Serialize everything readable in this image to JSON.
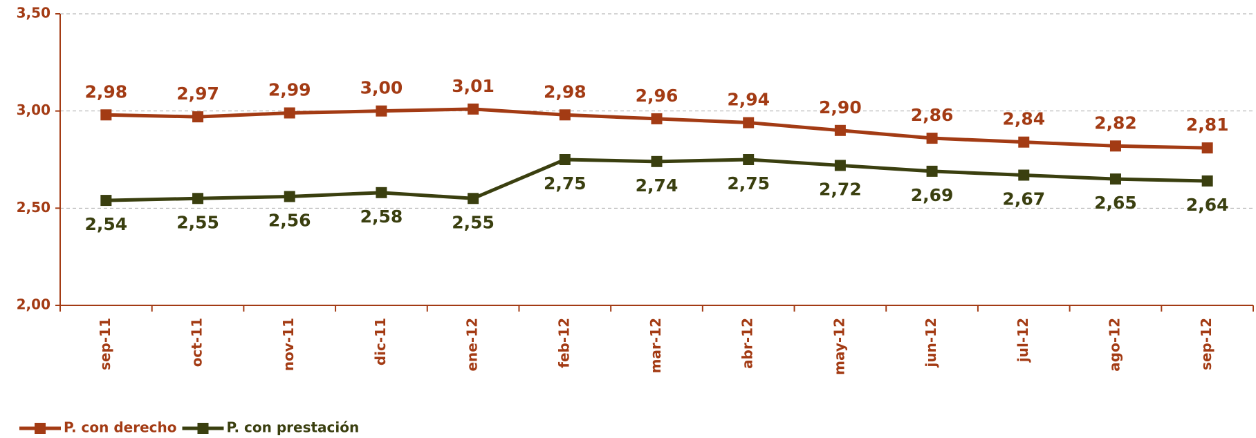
{
  "chart_data": {
    "type": "line",
    "categories": [
      "sep-11",
      "oct-11",
      "nov-11",
      "dic-11",
      "ene-12",
      "feb-12",
      "mar-12",
      "abr-12",
      "may-12",
      "jun-12",
      "jul-12",
      "ago-12",
      "sep-12"
    ],
    "series": [
      {
        "name": "P. con derecho",
        "color": "#a33b14",
        "values": [
          2.98,
          2.97,
          2.99,
          3.0,
          3.01,
          2.98,
          2.96,
          2.94,
          2.9,
          2.86,
          2.84,
          2.82,
          2.81
        ],
        "value_labels": [
          "2,98",
          "2,97",
          "2,99",
          "3,00",
          "3,01",
          "2,98",
          "2,96",
          "2,94",
          "2,90",
          "2,86",
          "2,84",
          "2,82",
          "2,81"
        ]
      },
      {
        "name": "P. con prestación",
        "color": "#3a3f0f",
        "values": [
          2.54,
          2.55,
          2.56,
          2.58,
          2.55,
          2.75,
          2.74,
          2.75,
          2.72,
          2.69,
          2.67,
          2.65,
          2.64
        ],
        "value_labels": [
          "2,54",
          "2,55",
          "2,56",
          "2,58",
          "2,55",
          "2,75",
          "2,74",
          "2,75",
          "2,72",
          "2,69",
          "2,67",
          "2,65",
          "2,64"
        ]
      }
    ],
    "ylim": [
      2.0,
      3.5
    ],
    "yticks": [
      {
        "value": 2.0,
        "label": "2,00"
      },
      {
        "value": 2.5,
        "label": "2,50"
      },
      {
        "value": 3.0,
        "label": "3,00"
      },
      {
        "value": 3.5,
        "label": "3,50"
      }
    ],
    "grid": true,
    "legend": "bottom-left"
  }
}
